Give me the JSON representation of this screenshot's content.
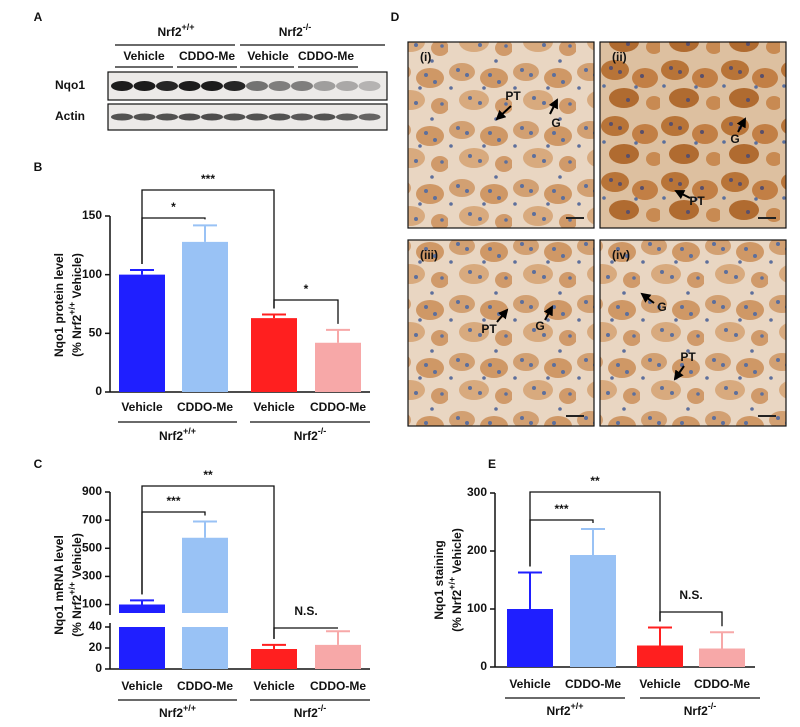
{
  "panel_labels": [
    "A",
    "B",
    "C",
    "D",
    "E"
  ],
  "blot": {
    "groups": [
      {
        "name": "Nrf2",
        "sup": "+/+"
      },
      {
        "name": "Nrf2",
        "sup": "-/-"
      }
    ],
    "treatments": [
      "Vehicle",
      "CDDO-Me",
      "Vehicle",
      "CDDO-Me"
    ],
    "rows": [
      "Nqo1",
      "Actin"
    ]
  },
  "micrographs": [
    {
      "label": "(i)",
      "arrows": [
        "PT",
        "G"
      ]
    },
    {
      "label": "(ii)",
      "arrows": [
        "G",
        "PT"
      ]
    },
    {
      "label": "(iii)",
      "arrows": [
        "PT",
        "G"
      ]
    },
    {
      "label": "(iv)",
      "arrows": [
        "G",
        "PT"
      ]
    }
  ],
  "chart_data": [
    {
      "type": "bar",
      "y_label": [
        "Nqo1 protein level",
        {
          "pre": "(% Nrf2",
          "sup": "+/+",
          "post": " Vehicle)"
        }
      ],
      "categories": [
        "Vehicle",
        "CDDO-Me",
        "Vehicle",
        "CDDO-Me"
      ],
      "groups": [
        {
          "name": "Nrf2",
          "sup": "+/+"
        },
        {
          "name": "Nrf2",
          "sup": "-/-"
        }
      ],
      "values": [
        100,
        128,
        63,
        42
      ],
      "errors": [
        4,
        14,
        3,
        11
      ],
      "colors": [
        "#1f1fff",
        "#99c2f5",
        "#ff1f1f",
        "#f7a8a8"
      ],
      "ylim": [
        0,
        150
      ],
      "yticks": [
        0,
        50,
        100,
        150
      ],
      "annotations": [
        {
          "text": "*",
          "from": 0,
          "to": 1
        },
        {
          "text": "***",
          "from": 0,
          "to": 2
        },
        {
          "text": "*",
          "from": 2,
          "to": 3
        }
      ]
    },
    {
      "type": "bar",
      "y_label": [
        "Nqo1 mRNA level",
        {
          "pre": "(% Nrf2",
          "sup": "+/+",
          "post": " Vehicle)"
        }
      ],
      "categories": [
        "Vehicle",
        "CDDO-Me",
        "Vehicle",
        "CDDO-Me"
      ],
      "groups": [
        {
          "name": "Nrf2",
          "sup": "+/+"
        },
        {
          "name": "Nrf2",
          "sup": "-/-"
        }
      ],
      "values": [
        100,
        575,
        19,
        23
      ],
      "errors": [
        30,
        115,
        4,
        13
      ],
      "colors": [
        "#1f1fff",
        "#99c2f5",
        "#ff1f1f",
        "#f7a8a8"
      ],
      "ylim": [
        0,
        900
      ],
      "ybreak": 40,
      "yticks": [
        0,
        20,
        40,
        100,
        300,
        500,
        700,
        900
      ],
      "annotations": [
        {
          "text": "***",
          "from": 0,
          "to": 1
        },
        {
          "text": "**",
          "from": 0,
          "to": 2
        },
        {
          "text": "N.S.",
          "from": 2,
          "to": 3
        }
      ]
    },
    {
      "type": "bar",
      "y_label": [
        "Nqo1 staining",
        {
          "pre": "(% Nrf2",
          "sup": "+/+",
          "post": " Vehicle)"
        }
      ],
      "categories": [
        "Vehicle",
        "CDDO-Me",
        "Vehicle",
        "CDDO-Me"
      ],
      "groups": [
        {
          "name": "Nrf2",
          "sup": "+/+"
        },
        {
          "name": "Nrf2",
          "sup": "-/-"
        }
      ],
      "values": [
        100,
        193,
        37,
        32
      ],
      "errors": [
        63,
        45,
        31,
        28
      ],
      "colors": [
        "#1f1fff",
        "#99c2f5",
        "#ff1f1f",
        "#f7a8a8"
      ],
      "ylim": [
        0,
        300
      ],
      "yticks": [
        0,
        100,
        200,
        300
      ],
      "annotations": [
        {
          "text": "***",
          "from": 0,
          "to": 1
        },
        {
          "text": "**",
          "from": 0,
          "to": 2
        },
        {
          "text": "N.S.",
          "from": 2,
          "to": 3
        }
      ]
    }
  ]
}
